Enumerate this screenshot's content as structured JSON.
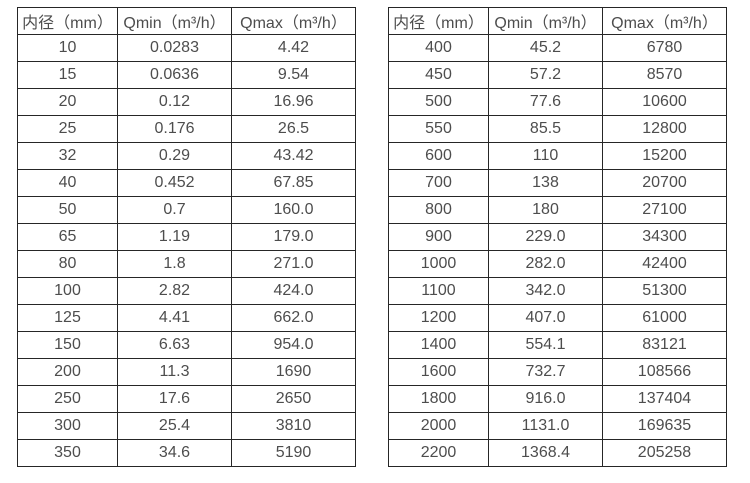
{
  "tables": [
    {
      "name": "flow-range-table-small-diameters",
      "headers": [
        "内径（mm）",
        "Qmin（m³/h）",
        "Qmax（m³/h）"
      ],
      "rows": [
        [
          "10",
          "0.0283",
          "4.42"
        ],
        [
          "15",
          "0.0636",
          "9.54"
        ],
        [
          "20",
          "0.12",
          "16.96"
        ],
        [
          "25",
          "0.176",
          "26.5"
        ],
        [
          "32",
          "0.29",
          "43.42"
        ],
        [
          "40",
          "0.452",
          "67.85"
        ],
        [
          "50",
          "0.7",
          "160.0"
        ],
        [
          "65",
          "1.19",
          "179.0"
        ],
        [
          "80",
          "1.8",
          "271.0"
        ],
        [
          "100",
          "2.82",
          "424.0"
        ],
        [
          "125",
          "4.41",
          "662.0"
        ],
        [
          "150",
          "6.63",
          "954.0"
        ],
        [
          "200",
          "11.3",
          "1690"
        ],
        [
          "250",
          "17.6",
          "2650"
        ],
        [
          "300",
          "25.4",
          "3810"
        ],
        [
          "350",
          "34.6",
          "5190"
        ]
      ]
    },
    {
      "name": "flow-range-table-large-diameters",
      "headers": [
        "内径（mm）",
        "Qmin（m³/h）",
        "Qmax（m³/h）"
      ],
      "rows": [
        [
          "400",
          "45.2",
          "6780"
        ],
        [
          "450",
          "57.2",
          "8570"
        ],
        [
          "500",
          "77.6",
          "10600"
        ],
        [
          "550",
          "85.5",
          "12800"
        ],
        [
          "600",
          "110",
          "15200"
        ],
        [
          "700",
          "138",
          "20700"
        ],
        [
          "800",
          "180",
          "27100"
        ],
        [
          "900",
          "229.0",
          "34300"
        ],
        [
          "1000",
          "282.0",
          "42400"
        ],
        [
          "1100",
          "342.0",
          "51300"
        ],
        [
          "1200",
          "407.0",
          "61000"
        ],
        [
          "1400",
          "554.1",
          "83121"
        ],
        [
          "1600",
          "732.7",
          "108566"
        ],
        [
          "1800",
          "916.0",
          "137404"
        ],
        [
          "2000",
          "1131.0",
          "169635"
        ],
        [
          "2200",
          "1368.4",
          "205258"
        ]
      ]
    }
  ],
  "colors": {
    "text": "#4d4d4d",
    "border": "#262626",
    "background": "#ffffff"
  }
}
